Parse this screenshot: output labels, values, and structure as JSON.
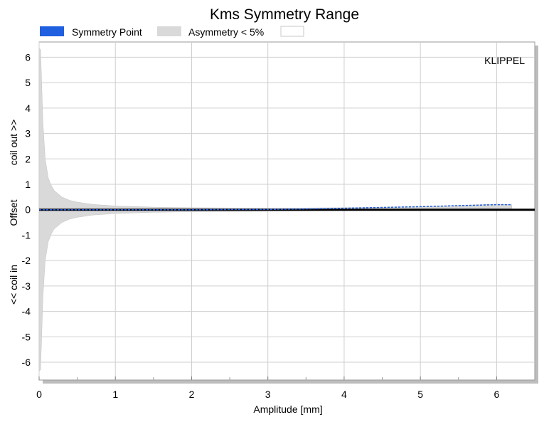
{
  "chart_data": {
    "type": "area",
    "title": "Kms Symmetry Range",
    "xlabel": "Amplitude [mm]",
    "ylabel_center": "Offset",
    "ylabel_top": "coil out >>",
    "ylabel_bottom": "<< coil in",
    "watermark": "KLIPPEL",
    "xlim": [
      0,
      6.5
    ],
    "ylim": [
      -6.7,
      6.6
    ],
    "xticks": [
      0,
      1,
      2,
      3,
      4,
      5,
      6
    ],
    "yticks": [
      6,
      5,
      4,
      3,
      2,
      1,
      0,
      -1,
      -2,
      -3,
      -4,
      -5,
      -6
    ],
    "grid": true,
    "legend": [
      {
        "label": "Symmetry Point",
        "color": "#1f5fe0"
      },
      {
        "label": "Asymmetry < 5%",
        "color": "#d9d9d9"
      },
      {
        "label": "",
        "color": "#ffffff"
      }
    ],
    "series": [
      {
        "name": "Symmetry Point",
        "x": [
          0,
          0.5,
          1,
          1.5,
          2,
          2.5,
          3,
          3.5,
          4,
          4.5,
          5,
          5.5,
          6,
          6.2
        ],
        "y": [
          0,
          0,
          0,
          0,
          0,
          0.01,
          0.01,
          0.03,
          0.06,
          0.09,
          0.12,
          0.16,
          0.2,
          0.2
        ]
      },
      {
        "name": "Asymmetry < 5%",
        "x": [
          0.0,
          0.02,
          0.05,
          0.08,
          0.12,
          0.16,
          0.2,
          0.3,
          0.4,
          0.5,
          0.7,
          1.0,
          1.5,
          2.0,
          3.0,
          4.0,
          5.0,
          6.0,
          6.2
        ],
        "upper": [
          6.35,
          6.3,
          3.4,
          2.0,
          1.25,
          0.95,
          0.75,
          0.5,
          0.37,
          0.3,
          0.21,
          0.15,
          0.1,
          0.08,
          0.06,
          0.08,
          0.12,
          0.22,
          0.2
        ],
        "lower": [
          -6.35,
          -6.3,
          -3.4,
          -2.0,
          -1.25,
          -0.95,
          -0.75,
          -0.5,
          -0.37,
          -0.3,
          -0.21,
          -0.15,
          -0.1,
          -0.08,
          -0.06,
          -0.03,
          0.0,
          0.05,
          0.05
        ]
      }
    ],
    "colors": {
      "band": "#d9d9d9",
      "symmetry": "#1f5fe0",
      "grid": "#cfcfcf",
      "baseline": "#000000",
      "frame_shadow": "#bdbdbd"
    }
  }
}
